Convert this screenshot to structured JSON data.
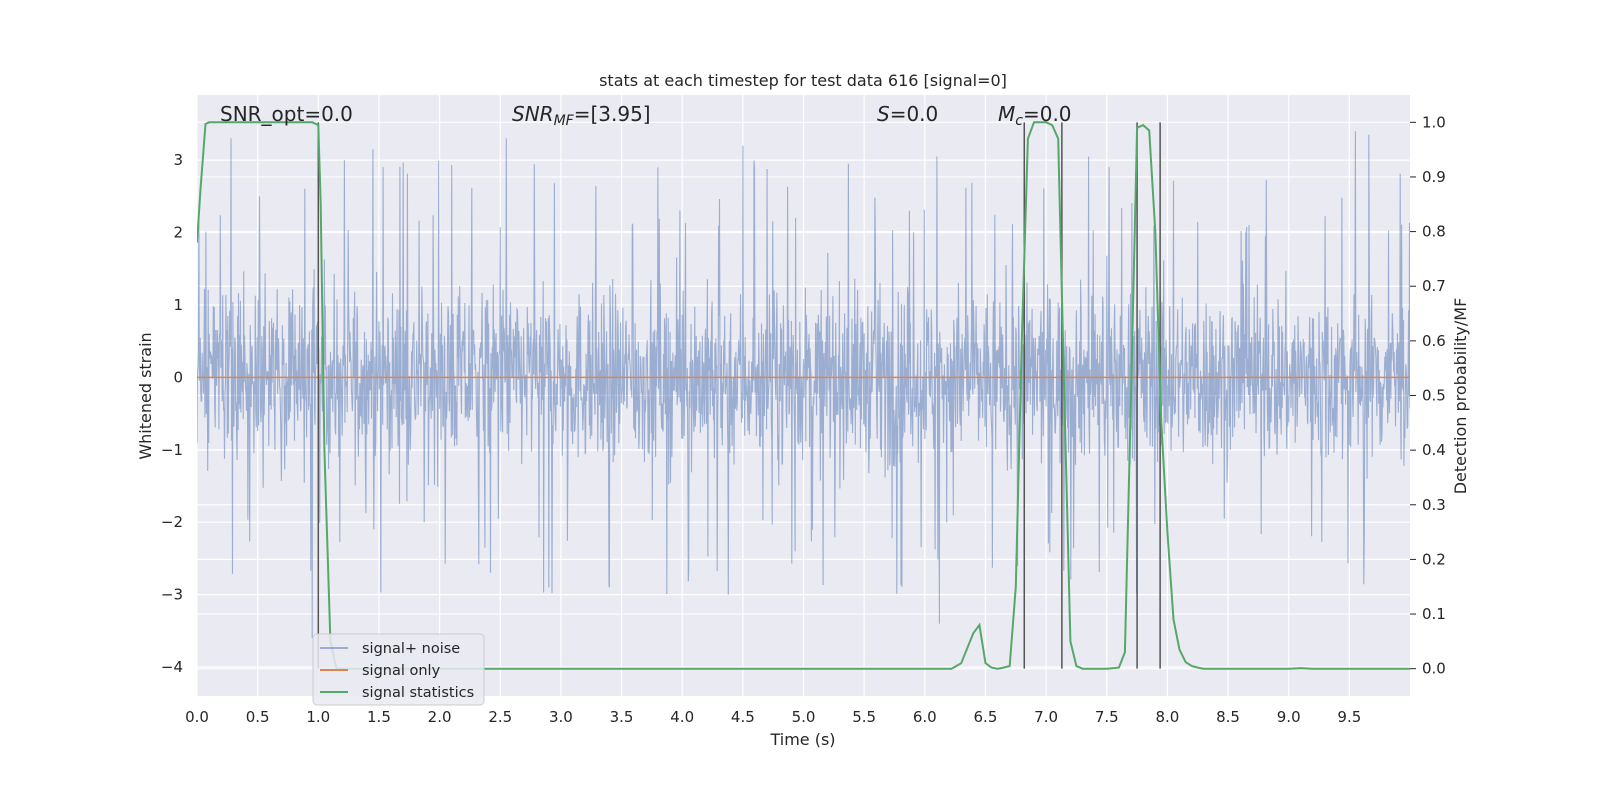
{
  "chart_data": {
    "type": "line",
    "title": "stats at each timestep for test data 616 [signal=0]",
    "xlabel": "Time (s)",
    "ylabel_left": "Whitened strain",
    "ylabel_right": "Detection probability/MF",
    "xlim": [
      0,
      10
    ],
    "ylim_left": [
      -4.4,
      3.9
    ],
    "ylim_right": [
      -0.05,
      1.05
    ],
    "x_ticks": [
      "0.0",
      "0.5",
      "1.0",
      "1.5",
      "2.0",
      "2.5",
      "3.0",
      "3.5",
      "4.0",
      "4.5",
      "5.0",
      "5.5",
      "6.0",
      "6.5",
      "7.0",
      "7.5",
      "8.0",
      "8.5",
      "9.0",
      "9.5"
    ],
    "x_tick_values": [
      0,
      0.5,
      1,
      1.5,
      2,
      2.5,
      3,
      3.5,
      4,
      4.5,
      5,
      5.5,
      6,
      6.5,
      7,
      7.5,
      8,
      8.5,
      9,
      9.5
    ],
    "y_left_ticks": [
      "3",
      "2",
      "1",
      "0",
      "−1",
      "−2",
      "−3",
      "−4"
    ],
    "y_left_tick_values": [
      3,
      2,
      1,
      0,
      -1,
      -2,
      -3,
      -4
    ],
    "y_right_ticks": [
      "1.0",
      "0.9",
      "0.8",
      "0.7",
      "0.6",
      "0.5",
      "0.4",
      "0.3",
      "0.2",
      "0.1",
      "0.0"
    ],
    "y_right_tick_values": [
      1.0,
      0.9,
      0.8,
      0.7,
      0.6,
      0.5,
      0.4,
      0.3,
      0.2,
      0.1,
      0.0
    ],
    "grid": true,
    "legend_position": "bottom-left",
    "annotations": [
      {
        "id": "snr_opt",
        "text": "SNR_opt=0.0"
      },
      {
        "id": "snr_mf",
        "text": "SNR_MF=[3.95]"
      },
      {
        "id": "s",
        "text": "S=0.0"
      },
      {
        "id": "mc",
        "text": "M_c=0.0"
      }
    ],
    "series": [
      {
        "name": "signal+ noise",
        "color": "#4c72b0",
        "axis": "left",
        "envelope_approx": {
          "typical_upper": 1.9,
          "typical_lower": -1.9,
          "max": 3.4,
          "min": -4.0
        },
        "notable_spikes": [
          [
            0.28,
            3.3
          ],
          [
            1.45,
            3.15
          ],
          [
            2.55,
            3.3
          ],
          [
            3.8,
            2.9
          ],
          [
            4.5,
            3.2
          ],
          [
            5.37,
            -4.0
          ],
          [
            5.37,
            2.95
          ],
          [
            6.1,
            3.05
          ],
          [
            6.12,
            -3.4
          ],
          [
            7.35,
            3.05
          ],
          [
            9.55,
            3.4
          ],
          [
            9.66,
            3.35
          ],
          [
            0.95,
            -3.6
          ],
          [
            2.9,
            -2.9
          ],
          [
            3.4,
            -2.9
          ],
          [
            4.38,
            -3.0
          ]
        ]
      },
      {
        "name": "signal only",
        "color": "#dd8452",
        "axis": "left",
        "x": [
          0,
          10
        ],
        "y": [
          0,
          0
        ]
      },
      {
        "name": "signal statistics",
        "color": "#55a868",
        "axis": "right",
        "x": [
          0.0,
          0.03,
          0.07,
          0.1,
          0.2,
          0.4,
          0.6,
          0.8,
          0.95,
          1.0,
          1.02,
          1.05,
          1.1,
          1.15,
          1.2,
          2.0,
          3.0,
          4.0,
          5.0,
          5.5,
          6.0,
          6.22,
          6.3,
          6.4,
          6.45,
          6.5,
          6.55,
          6.6,
          6.65,
          6.7,
          6.75,
          6.8,
          6.85,
          6.9,
          6.95,
          7.0,
          7.05,
          7.1,
          7.15,
          7.2,
          7.25,
          7.3,
          7.35,
          7.4,
          7.5,
          7.6,
          7.65,
          7.7,
          7.75,
          7.8,
          7.85,
          7.9,
          7.95,
          8.0,
          8.05,
          8.1,
          8.15,
          8.2,
          8.25,
          8.3,
          8.4,
          8.5,
          8.6,
          9.0,
          9.1,
          9.2,
          10.0
        ],
        "y": [
          0.78,
          0.88,
          0.997,
          1.0,
          1.0,
          1.0,
          1.0,
          1.0,
          1.0,
          0.995,
          0.85,
          0.4,
          0.05,
          0.0,
          0.0,
          0.0,
          0.0,
          0.0,
          0.0,
          0.0,
          0.0,
          0.0,
          0.01,
          0.065,
          0.08,
          0.01,
          0.002,
          0.0,
          0.002,
          0.005,
          0.15,
          0.6,
          0.97,
          1.0,
          1.0,
          1.0,
          0.995,
          0.97,
          0.5,
          0.05,
          0.005,
          0.0,
          0.0,
          0.0,
          0.0,
          0.002,
          0.03,
          0.5,
          0.99,
          0.995,
          0.985,
          0.8,
          0.45,
          0.25,
          0.09,
          0.035,
          0.012,
          0.005,
          0.002,
          0.0,
          0.0,
          0.0,
          0.0,
          0.0,
          0.001,
          0.0,
          0.0
        ]
      }
    ],
    "vertical_lines_x": [
      1.0,
      6.82,
      7.13,
      7.75,
      7.94
    ]
  }
}
